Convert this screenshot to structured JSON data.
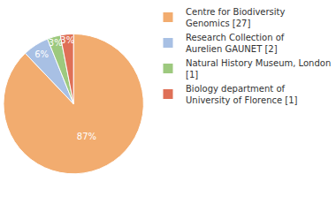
{
  "chart_data": {
    "type": "pie",
    "categories": [
      "Centre for Biodiversity Genomics [27]",
      "Research Collection of Aurelien GAUNET [2]",
      "Natural History Museum, London [1]",
      "Biology department of University of Florence [1]"
    ],
    "values": [
      87,
      6,
      3,
      3
    ],
    "value_labels": [
      "87%",
      "6%",
      "3%",
      "3%"
    ],
    "colors": [
      "#f2ac6f",
      "#a8c0e4",
      "#9dc97e",
      "#df7057"
    ],
    "data_labels": true,
    "legend": "top-right"
  }
}
